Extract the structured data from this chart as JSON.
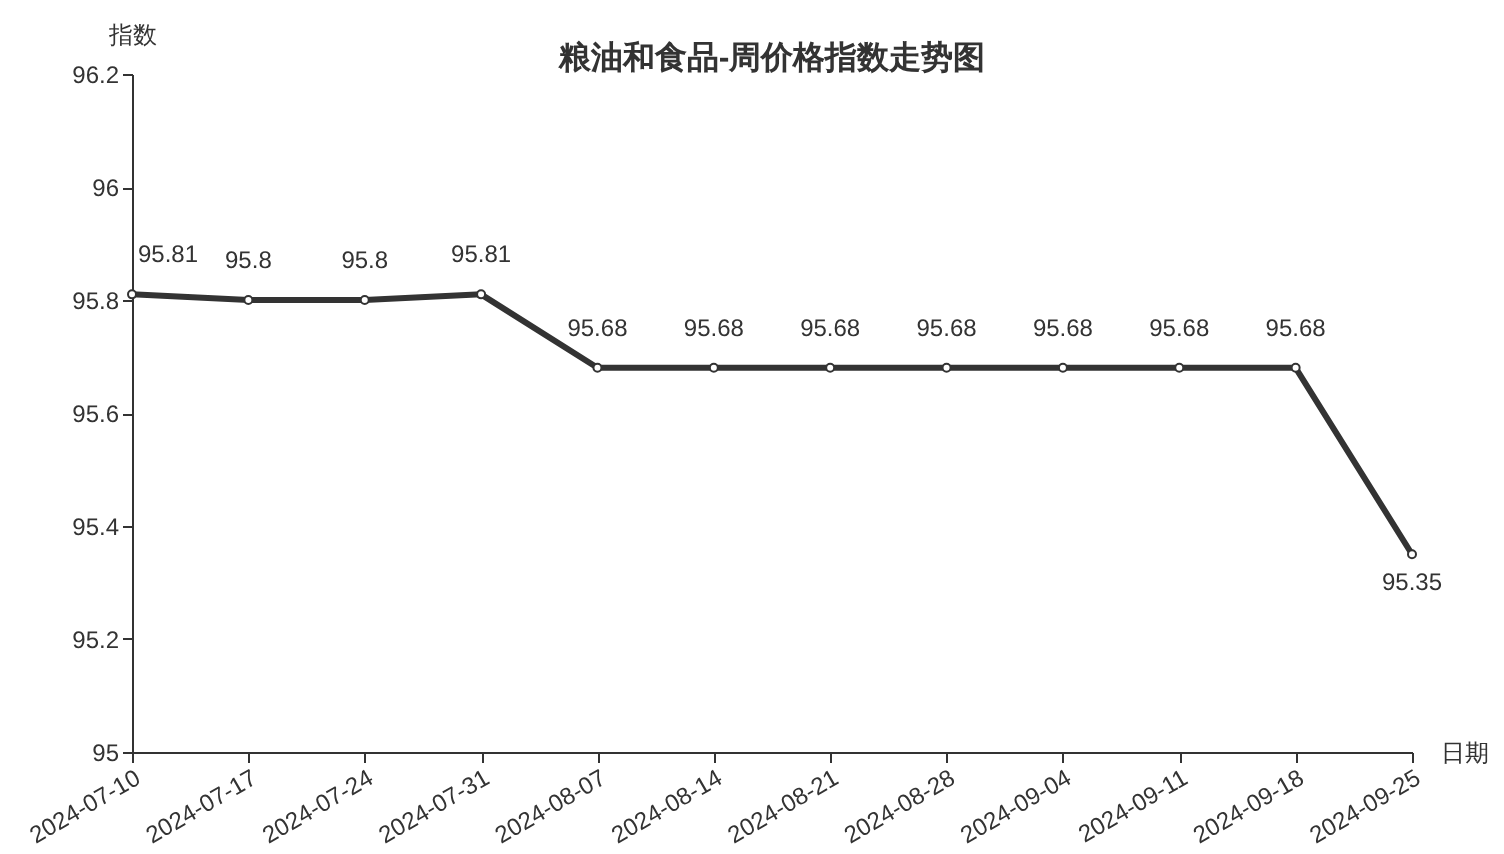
{
  "chart_data": {
    "type": "line",
    "title": "粮油和食品-周价格指数走势图",
    "xlabel": "日期",
    "ylabel": "指数",
    "categories": [
      "2024-07-10",
      "2024-07-17",
      "2024-07-24",
      "2024-07-31",
      "2024-08-07",
      "2024-08-14",
      "2024-08-21",
      "2024-08-28",
      "2024-09-04",
      "2024-09-11",
      "2024-09-18",
      "2024-09-25"
    ],
    "series": [
      {
        "color": "#333333",
        "values": [
          95.81,
          95.8,
          95.8,
          95.81,
          95.68,
          95.68,
          95.68,
          95.68,
          95.68,
          95.68,
          95.68,
          95.35
        ]
      }
    ],
    "ylim": [
      95,
      96.2
    ],
    "yticks": [
      95,
      95.2,
      95.4,
      95.6,
      95.8,
      96,
      96.2
    ],
    "grid": false,
    "marker": "circle",
    "line_style": "solid",
    "data_labels": true
  }
}
